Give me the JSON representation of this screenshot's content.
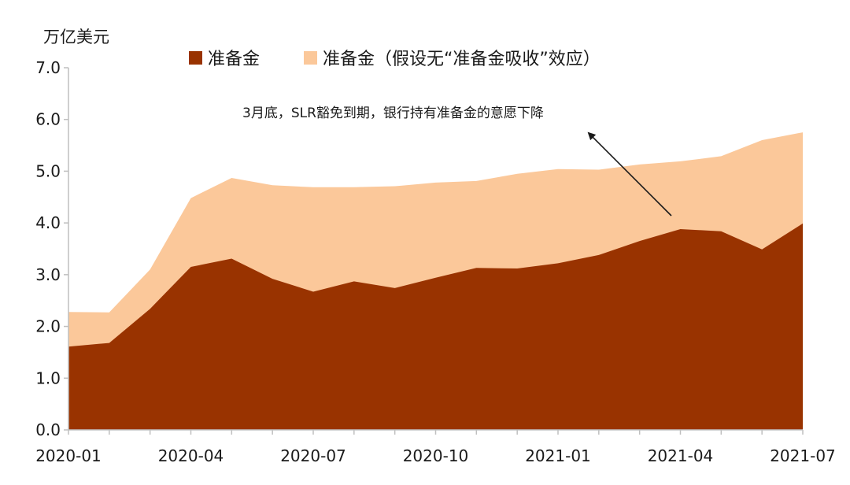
{
  "chart_data": {
    "type": "area",
    "y_unit_label": "万亿美元",
    "ylim": [
      0,
      7
    ],
    "yticks": [
      "0.0",
      "1.0",
      "2.0",
      "3.0",
      "4.0",
      "5.0",
      "6.0",
      "7.0"
    ],
    "xticks": [
      "2020-01",
      "2020-04",
      "2020-07",
      "2020-10",
      "2021-01",
      "2021-04",
      "2021-07"
    ],
    "x": [
      "2020-01",
      "2020-02",
      "2020-03",
      "2020-04",
      "2020-05",
      "2020-06",
      "2020-07",
      "2020-08",
      "2020-09",
      "2020-10",
      "2020-11",
      "2020-12",
      "2021-01",
      "2021-02",
      "2021-03",
      "2021-04",
      "2021-05",
      "2021-06",
      "2021-07"
    ],
    "series": [
      {
        "name": "准备金（假设无“准备金吸收”效应）",
        "color": "#FBC89A",
        "values": [
          2.28,
          2.27,
          3.1,
          4.48,
          4.87,
          4.73,
          4.69,
          4.69,
          4.71,
          4.78,
          4.81,
          4.95,
          5.04,
          5.03,
          5.13,
          5.19,
          5.29,
          5.6,
          5.75
        ]
      },
      {
        "name": "准备金",
        "color": "#993300",
        "values": [
          1.61,
          1.68,
          2.34,
          3.15,
          3.31,
          2.92,
          2.67,
          2.87,
          2.74,
          2.94,
          3.13,
          3.12,
          3.22,
          3.38,
          3.65,
          3.88,
          3.84,
          3.49,
          3.99
        ]
      }
    ],
    "legend": [
      {
        "label": "准备金",
        "color": "#993300"
      },
      {
        "label": "准备金（假设无“准备金吸收”效应）",
        "color": "#FBC89A"
      }
    ],
    "legend_position": "top",
    "grid": false,
    "annotation": {
      "text": "3月底，SLR豁免到期，银行持有准备金的意愿下降",
      "arrow": true
    }
  }
}
